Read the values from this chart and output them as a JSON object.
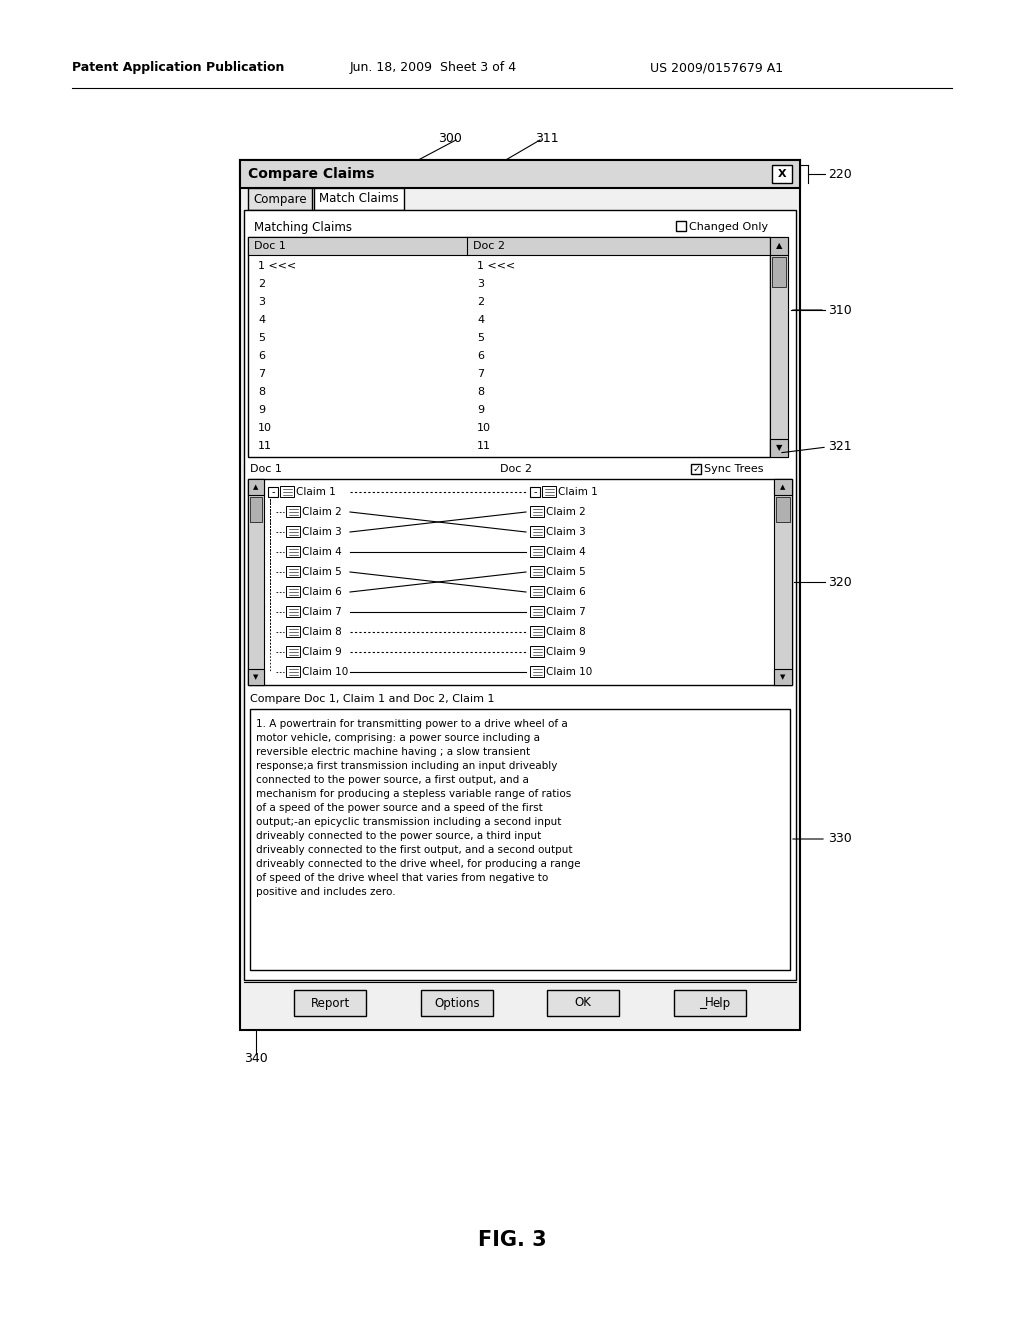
{
  "bg_color": "#ffffff",
  "header_text": "Patent Application Publication",
  "header_date": "Jun. 18, 2009  Sheet 3 of 4",
  "header_patent": "US 2009/0157679 A1",
  "fig_label": "FIG. 3",
  "title_text": "Compare Claims",
  "tab1": "Compare",
  "tab2": "Match Claims",
  "matching_claims_label": "Matching Claims",
  "changed_only_label": "Changed Only",
  "doc1_label": "Doc 1",
  "doc2_label": "Doc 2",
  "sync_trees_label": "Sync Trees",
  "claim_status_text": "Compare Doc 1, Claim 1 and Doc 2, Claim 1",
  "body_lines": [
    "1. A powertrain for transmitting power to a drive wheel of a",
    "motor vehicle, comprising: a power source including a",
    "reversible electric machine having ; a slow transient",
    "response;a first transmission including an input driveably",
    "connected to the power source, a first output, and a",
    "mechanism for producing a stepless variable range of ratios",
    "of a speed of the power source and a speed of the first",
    "output;-an epicyclic transmission including a second input",
    "driveably connected to the power source, a third input",
    "driveably connected to the first output, and a second output",
    "driveably connected to the drive wheel, for producing a range",
    "of speed of the drive wheel that varies from negative to",
    "positive and includes zero."
  ],
  "doc1_rows": [
    "1 <<<",
    "2",
    "3",
    "4",
    "5",
    "6",
    "7",
    "8",
    "9",
    "10",
    "11"
  ],
  "doc2_rows": [
    "1 <<<",
    "3",
    "2",
    "4",
    "5",
    "6",
    "7",
    "8",
    "9",
    "10",
    "11"
  ],
  "claims_left": [
    "Claim 1",
    "Claim 2",
    "Claim 3",
    "Claim 4",
    "Claim 5",
    "Claim 6",
    "Claim 7",
    "Claim 8",
    "Claim 9",
    "Claim 10"
  ],
  "claims_right": [
    "Claim 1",
    "Claim 2",
    "Claim 3",
    "Claim 4",
    "Claim 5",
    "Claim 6",
    "Claim 7",
    "Claim 8",
    "Claim 9",
    "Claim 10"
  ],
  "connections": [
    [
      0,
      0,
      "dotted"
    ],
    [
      1,
      2,
      "solid"
    ],
    [
      2,
      1,
      "solid"
    ],
    [
      3,
      3,
      "solid"
    ],
    [
      4,
      5,
      "solid"
    ],
    [
      5,
      4,
      "solid"
    ],
    [
      6,
      6,
      "solid"
    ],
    [
      7,
      7,
      "dotted"
    ],
    [
      8,
      8,
      "dotted"
    ],
    [
      9,
      9,
      "solid"
    ]
  ],
  "btn_labels": [
    "Report",
    "Options",
    "OK",
    "Help"
  ],
  "ref_nums": [
    "300",
    "311",
    "220",
    "310",
    "321",
    "320",
    "330",
    "340"
  ]
}
